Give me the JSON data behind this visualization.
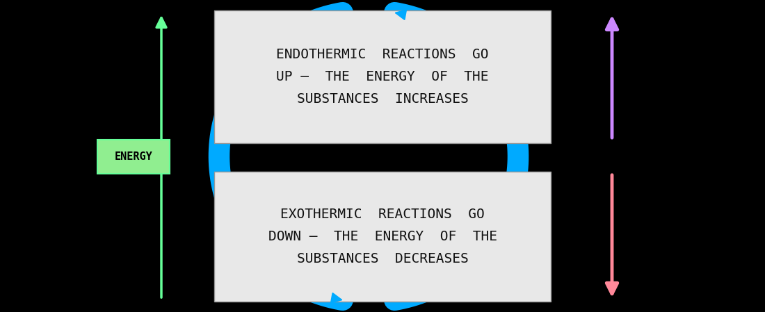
{
  "bg_color": "#000000",
  "fig_width": 11.0,
  "fig_height": 4.49,
  "energy_label": "ENERGY",
  "energy_box_color": "#90EE90",
  "green_arrow_color": "#66FF99",
  "purple_arrow_color": "#CC88FF",
  "pink_arrow_color": "#FF8899",
  "blue_color": "#00AAFF",
  "top_box_text": "ENDOTHERMIC  REACTIONS  GO\nUP –  THE  ENERGY  OF  THE\nSUBSTANCES  INCREASES",
  "bottom_box_text": "EXOTHERMIC  REACTIONS  GO\nDOWN –  THE  ENERGY  OF  THE\nSUBSTANCES  DECREASES",
  "box_bg": "#E8E8E8",
  "text_color": "#111111",
  "font_size": 14
}
